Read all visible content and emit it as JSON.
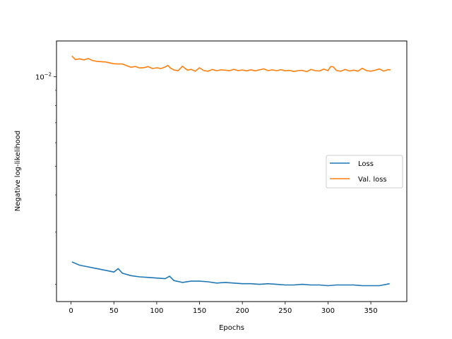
{
  "chart_data": {
    "type": "line",
    "title": "",
    "xlabel": "Epochs",
    "ylabel": "Negative log-likelihood",
    "yscale": "log",
    "xlim": [
      -17,
      392
    ],
    "ylim": [
      0.00175,
      0.0132
    ],
    "x_ticks": [
      0,
      50,
      100,
      150,
      200,
      250,
      300,
      350
    ],
    "y_ticks": [
      {
        "value": 0.01,
        "label": "10",
        "exponent": "−2"
      }
    ],
    "grid": false,
    "legend_position": "center-right",
    "series": [
      {
        "name": "Loss",
        "color": "#1f77b4",
        "x": [
          1,
          10,
          20,
          30,
          40,
          50,
          55,
          60,
          70,
          80,
          90,
          100,
          110,
          115,
          120,
          130,
          140,
          150,
          160,
          170,
          180,
          190,
          200,
          210,
          220,
          230,
          240,
          250,
          260,
          270,
          280,
          290,
          300,
          310,
          320,
          330,
          340,
          350,
          360,
          372
        ],
        "values": [
          0.00238,
          0.00232,
          0.00229,
          0.00226,
          0.00223,
          0.0022,
          0.00226,
          0.00218,
          0.00214,
          0.00212,
          0.00211,
          0.0021,
          0.00209,
          0.00213,
          0.00206,
          0.00203,
          0.00205,
          0.00205,
          0.00204,
          0.00202,
          0.00203,
          0.00202,
          0.00201,
          0.00201,
          0.002,
          0.00201,
          0.002,
          0.00199,
          0.00199,
          0.002,
          0.00199,
          0.00199,
          0.00198,
          0.00199,
          0.00199,
          0.00199,
          0.00198,
          0.00198,
          0.00198,
          0.00201
        ]
      },
      {
        "name": "Val. loss",
        "color": "#ff7f0e",
        "x": [
          1,
          5,
          10,
          15,
          20,
          25,
          30,
          40,
          50,
          55,
          60,
          65,
          70,
          75,
          80,
          85,
          90,
          95,
          100,
          105,
          110,
          113,
          116,
          120,
          125,
          130,
          133,
          136,
          140,
          145,
          150,
          155,
          160,
          165,
          170,
          175,
          180,
          185,
          190,
          195,
          200,
          205,
          210,
          215,
          220,
          225,
          230,
          235,
          240,
          245,
          250,
          255,
          260,
          265,
          270,
          275,
          280,
          285,
          290,
          295,
          300,
          303,
          306,
          310,
          315,
          320,
          325,
          330,
          335,
          340,
          345,
          350,
          355,
          360,
          365,
          370,
          373
        ],
        "values": [
          0.01175,
          0.01143,
          0.01149,
          0.0114,
          0.01152,
          0.01135,
          0.01127,
          0.01122,
          0.01106,
          0.01104,
          0.01104,
          0.0109,
          0.01077,
          0.01083,
          0.01071,
          0.01073,
          0.01082,
          0.01066,
          0.01072,
          0.01066,
          0.01079,
          0.01093,
          0.0107,
          0.01054,
          0.01048,
          0.01085,
          0.01068,
          0.01053,
          0.01059,
          0.01044,
          0.01072,
          0.01049,
          0.01044,
          0.01058,
          0.01048,
          0.01055,
          0.01052,
          0.01048,
          0.01059,
          0.01049,
          0.01054,
          0.01047,
          0.01056,
          0.01047,
          0.01055,
          0.01063,
          0.01049,
          0.01055,
          0.01048,
          0.01057,
          0.01047,
          0.01051,
          0.01042,
          0.01049,
          0.01051,
          0.0104,
          0.01058,
          0.01049,
          0.01046,
          0.01061,
          0.01049,
          0.01082,
          0.01081,
          0.01049,
          0.01044,
          0.01058,
          0.01046,
          0.01053,
          0.01045,
          0.01068,
          0.01049,
          0.01044,
          0.01052,
          0.01062,
          0.01045,
          0.01057,
          0.01056
        ]
      }
    ]
  }
}
